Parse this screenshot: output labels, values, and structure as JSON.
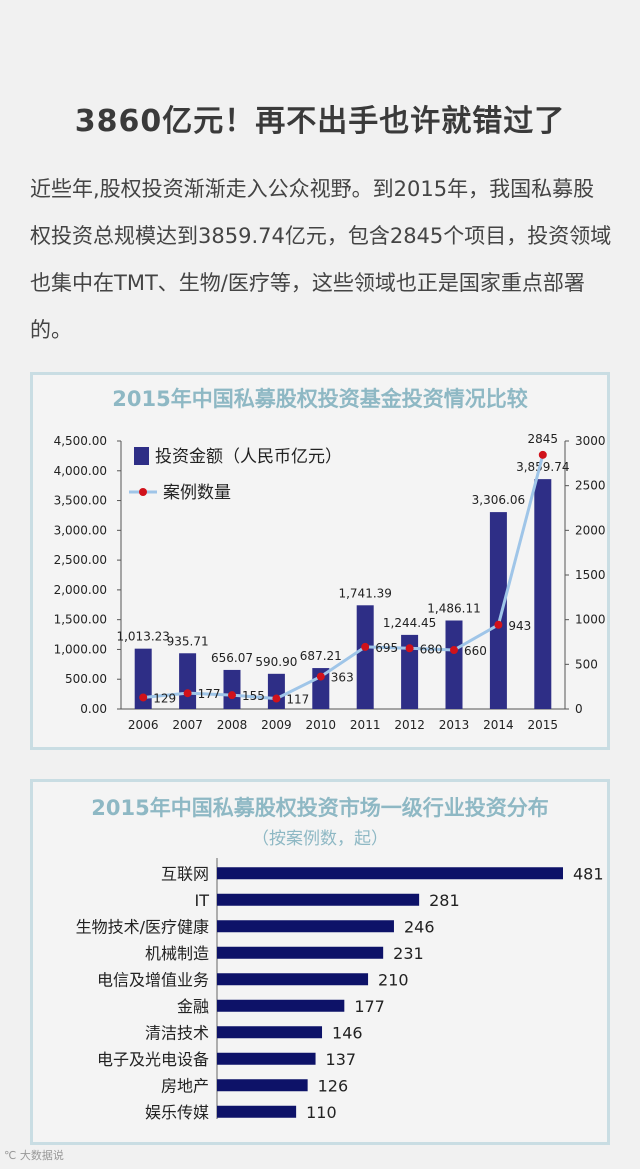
{
  "headline": "3860亿元！再不出手也许就错过了",
  "intro": "近些年,股权投资渐渐走入公众视野。到2015年，我国私募股权投资总规模达到3859.74亿元，包含2845个项目，投资领域也集中在TMT、生物/医疗等，这些领域也正是国家重点部署的。",
  "watermark": "℃ 大数据说",
  "chart_data": [
    {
      "type": "bar",
      "title": "2015年中国私募股权投资基金投资情况比较",
      "categories": [
        "2006",
        "2007",
        "2008",
        "2009",
        "2010",
        "2011",
        "2012",
        "2013",
        "2014",
        "2015"
      ],
      "series": [
        {
          "name": "投资金额（人民币亿元）",
          "type": "bar",
          "axis": "left",
          "values": [
            1013.23,
            935.71,
            656.07,
            590.9,
            687.21,
            1741.39,
            1244.45,
            1486.11,
            3306.06,
            3859.74
          ],
          "labels": [
            "1,013.23",
            "935.71",
            "656.07",
            "590.90",
            "687.21",
            "1,741.39",
            "1,244.45",
            "1,486.11",
            "3,306.06",
            "3,859.74"
          ]
        },
        {
          "name": "案例数量",
          "type": "line",
          "axis": "right",
          "values": [
            129,
            177,
            155,
            117,
            363,
            695,
            680,
            660,
            943,
            2845
          ],
          "labels": [
            "129",
            "177",
            "155",
            "117",
            "363",
            "695",
            "680",
            "660",
            "943",
            "2845"
          ]
        }
      ],
      "ylim_left": [
        0,
        4500
      ],
      "yticks_left": [
        "0.00",
        "500.00",
        "1,000.00",
        "1,500.00",
        "2,000.00",
        "2,500.00",
        "3,000.00",
        "3,500.00",
        "4,000.00",
        "4,500.00"
      ],
      "ylim_right": [
        0,
        3000
      ],
      "yticks_right": [
        "0",
        "500",
        "1000",
        "1500",
        "2000",
        "2500",
        "3000"
      ],
      "colors": {
        "bar": "#2e2e86",
        "line": "#9fc5e8",
        "marker": "#d0121b"
      },
      "legend": "top-left"
    },
    {
      "type": "bar",
      "orientation": "horizontal",
      "title": "2015年中国私募股权投资市场一级行业投资分布",
      "subtitle": "（按案例数，起）",
      "categories": [
        "互联网",
        "IT",
        "生物技术/医疗健康",
        "机械制造",
        "电信及增值业务",
        "金融",
        "清洁技术",
        "电子及光电设备",
        "房地产",
        "娱乐传媒"
      ],
      "values": [
        481,
        281,
        246,
        231,
        210,
        177,
        146,
        137,
        126,
        110
      ],
      "xlim": [
        0,
        500
      ],
      "colors": {
        "bar": "#0d1268"
      }
    }
  ]
}
